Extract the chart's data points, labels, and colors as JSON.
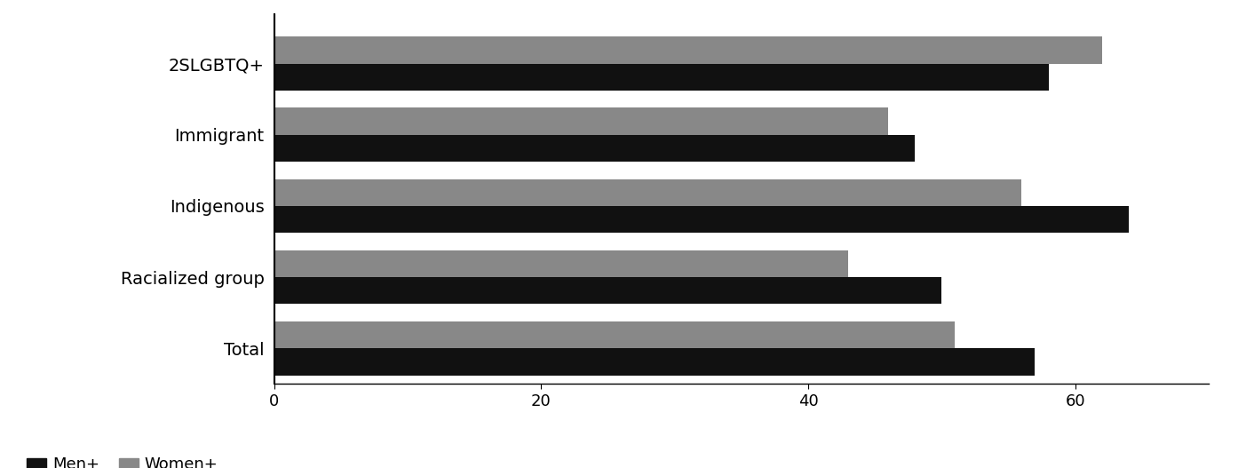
{
  "categories": [
    "2SLGBTQ+",
    "Immigrant",
    "Indigenous",
    "Racialized group",
    "Total"
  ],
  "men_values": [
    58,
    48,
    64,
    50,
    57
  ],
  "women_values": [
    62,
    46,
    56,
    43,
    51
  ],
  "men_color": "#111111",
  "women_color": "#888888",
  "xlim": [
    0,
    70
  ],
  "xticks": [
    0,
    20,
    40,
    60
  ],
  "bar_height": 0.38,
  "legend_men_label": "Men+",
  "legend_women_label": "Women+",
  "background_color": "#ffffff",
  "spine_color": "#000000",
  "tick_fontsize": 13,
  "label_fontsize": 14,
  "legend_fontsize": 13
}
